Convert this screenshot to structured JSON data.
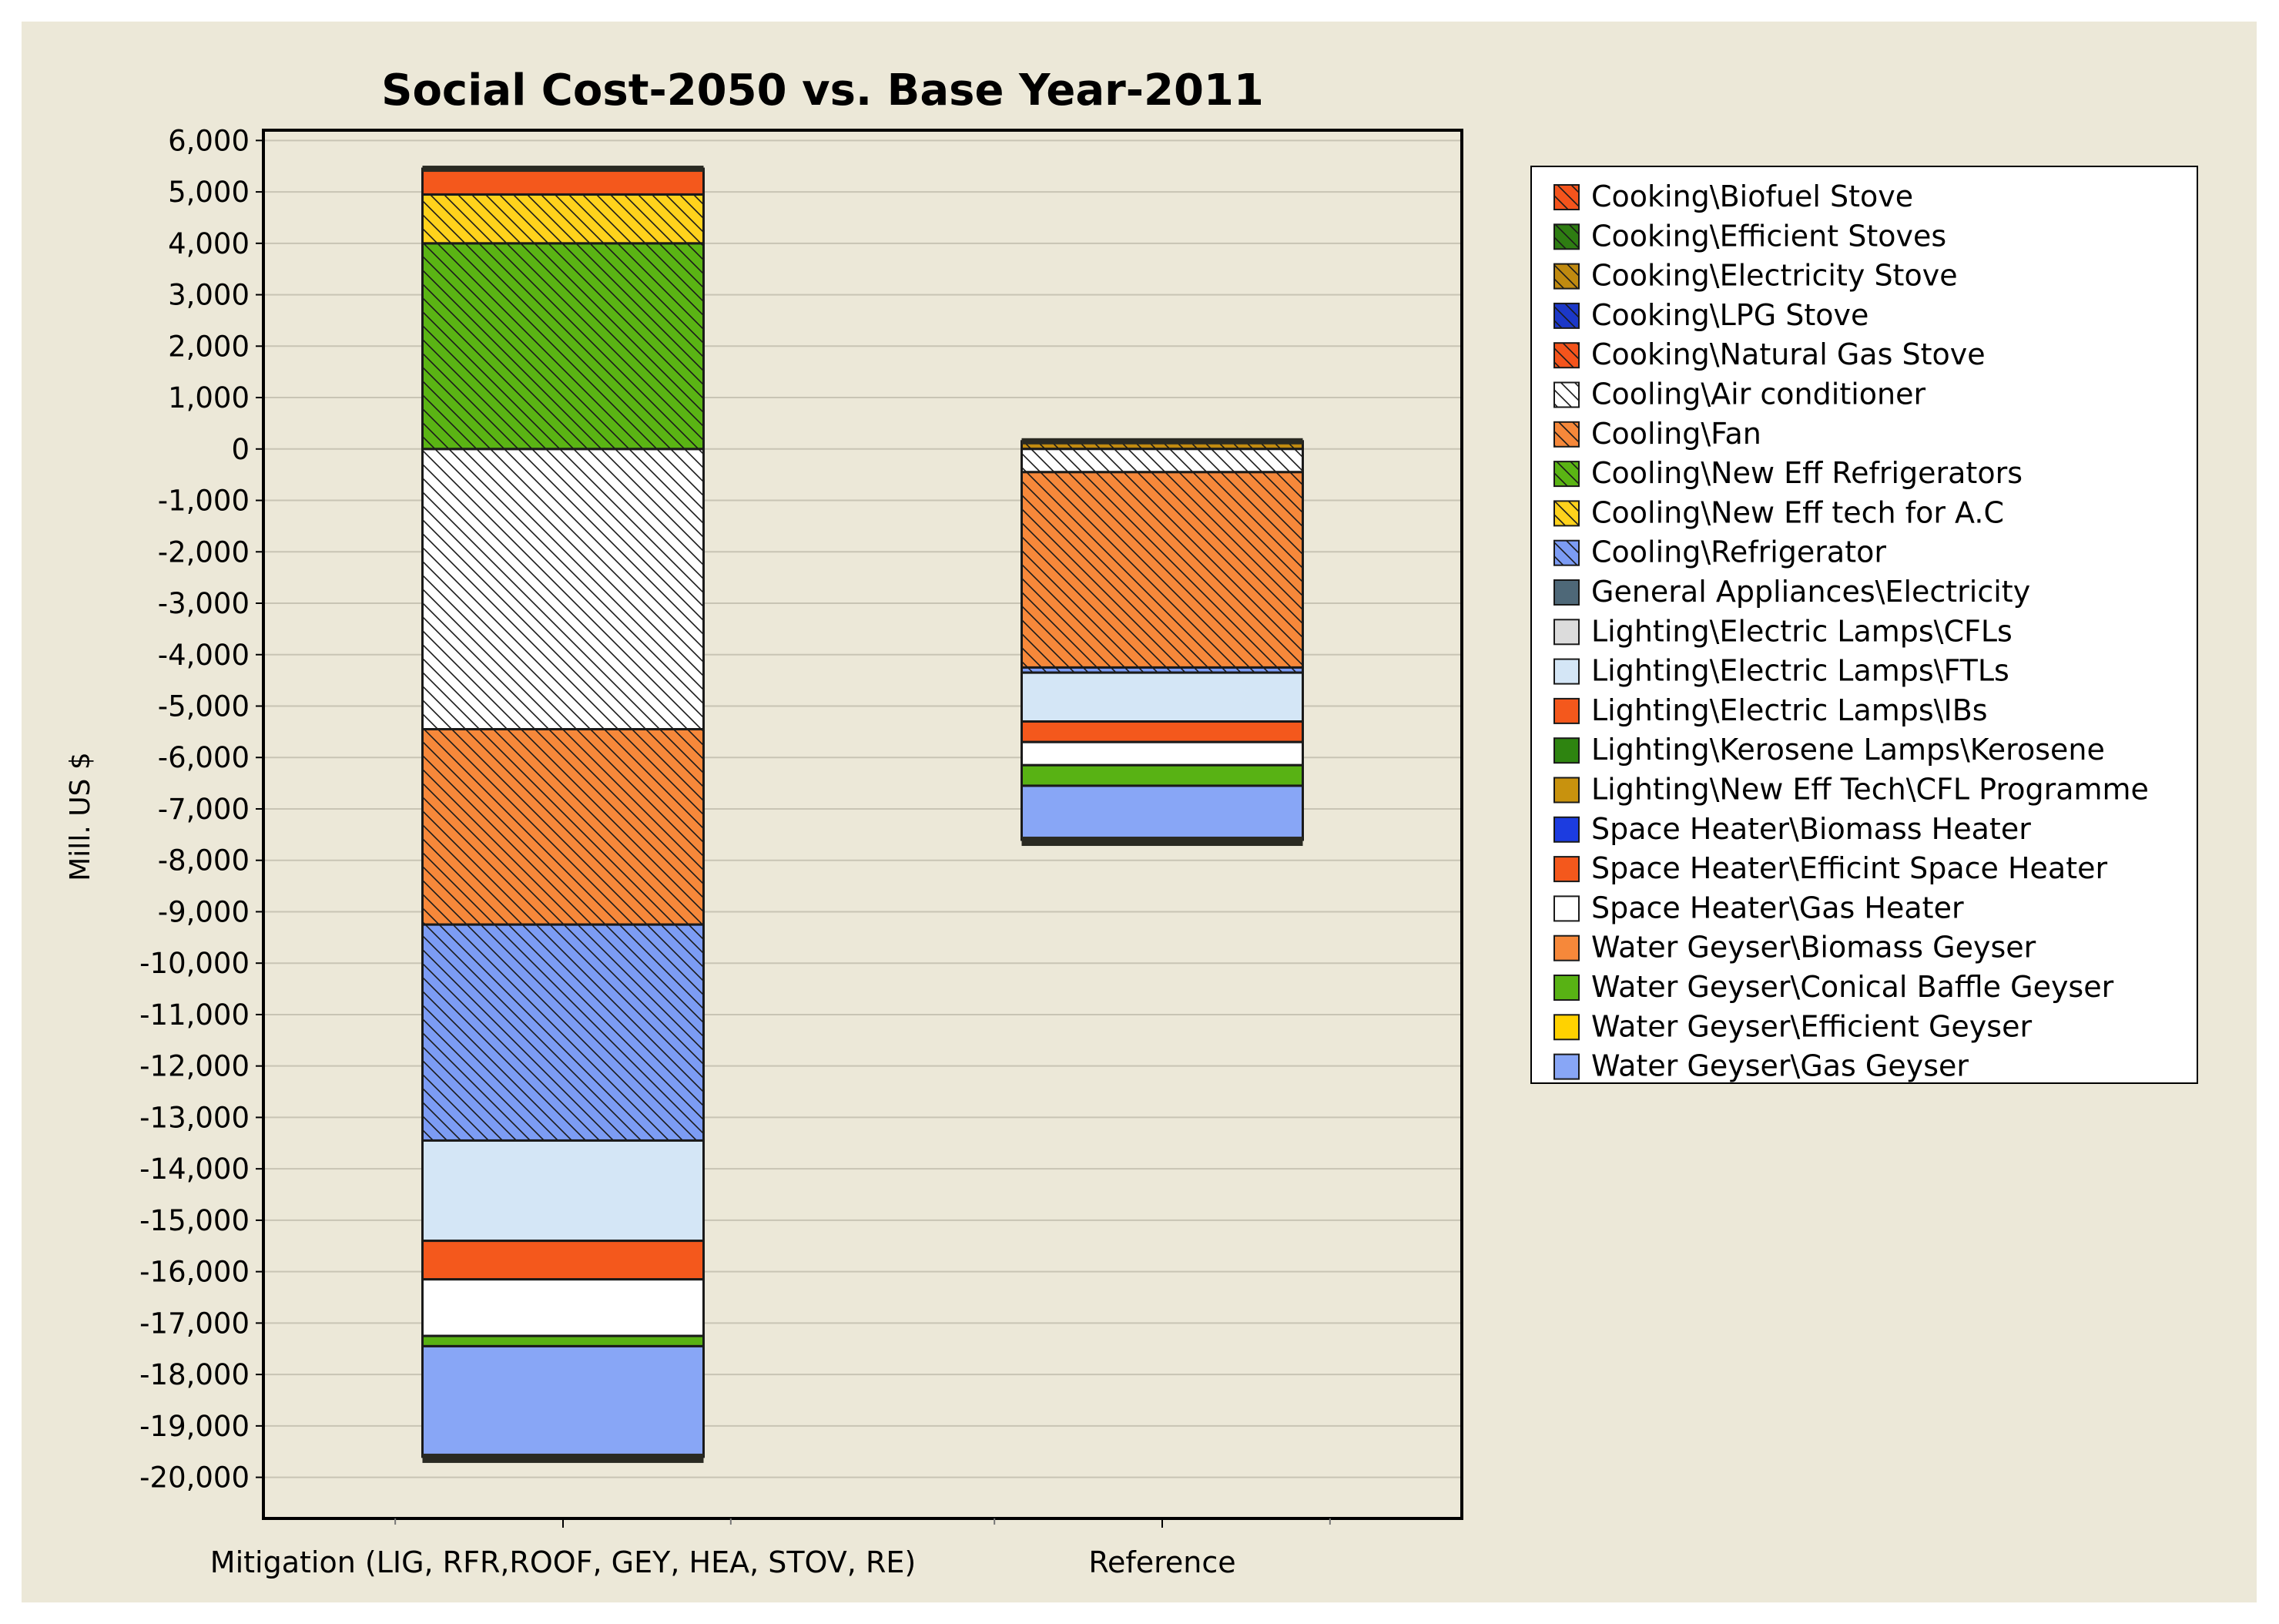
{
  "chart_data": {
    "type": "bar",
    "stacked": true,
    "title": "Social Cost-2050 vs. Base Year-2011",
    "xlabel": "",
    "ylabel": "Mill. US $",
    "ylim": [
      -20800,
      6200
    ],
    "yticks": [
      6000,
      5000,
      4000,
      3000,
      2000,
      1000,
      0,
      -1000,
      -2000,
      -3000,
      -4000,
      -5000,
      -6000,
      -7000,
      -8000,
      -9000,
      -10000,
      -11000,
      -12000,
      -13000,
      -14000,
      -15000,
      -16000,
      -17000,
      -18000,
      -19000,
      -20000
    ],
    "ytick_labels": [
      "6,000",
      "5,000",
      "4,000",
      "3,000",
      "2,000",
      "1,000",
      "0",
      "-1,000",
      "-2,000",
      "-3,000",
      "-4,000",
      "-5,000",
      "-6,000",
      "-7,000",
      "-8,000",
      "-9,000",
      "-10,000",
      "-11,000",
      "-12,000",
      "-13,000",
      "-14,000",
      "-15,000",
      "-16,000",
      "-17,000",
      "-18,000",
      "-19,000",
      "-20,000"
    ],
    "grid": true,
    "legend_position": "right",
    "categories": [
      "Mitigation (LIG, RFR,ROOF, GEY, HEA, STOV, RE)",
      "Reference"
    ],
    "series": [
      {
        "name": "Cooking\\Biofuel Stove",
        "color": "#f4541c",
        "hatch": true,
        "values": [
          0,
          0
        ]
      },
      {
        "name": "Cooking\\Efficient Stoves",
        "color": "#2e7d12",
        "hatch": true,
        "values": [
          0,
          0
        ]
      },
      {
        "name": "Cooking\\Electricity Stove",
        "color": "#c08a10",
        "hatch": true,
        "values": [
          0,
          150
        ]
      },
      {
        "name": "Cooking\\LPG Stove",
        "color": "#1c38c8",
        "hatch": true,
        "values": [
          0,
          0
        ]
      },
      {
        "name": "Cooking\\Natural Gas Stove",
        "color": "#f4541c",
        "hatch": true,
        "values": [
          0,
          0
        ]
      },
      {
        "name": "Cooling\\Air conditioner",
        "color": "#ffffff",
        "hatch": true,
        "values": [
          -5450,
          -450
        ]
      },
      {
        "name": "Cooling\\Fan",
        "color": "#f6883a",
        "hatch": true,
        "values": [
          -3800,
          -3800
        ]
      },
      {
        "name": "Cooling\\New Eff Refrigerators",
        "color": "#5ab414",
        "hatch": true,
        "values": [
          4000,
          0
        ]
      },
      {
        "name": "Cooling\\New Eff tech for A.C",
        "color": "#ffd21c",
        "hatch": true,
        "values": [
          950,
          0
        ]
      },
      {
        "name": "Cooling\\Refrigerator",
        "color": "#7c9cf4",
        "hatch": true,
        "values": [
          -4200,
          -100
        ]
      },
      {
        "name": "General Appliances\\Electricity",
        "color": "#4e6878",
        "hatch": false,
        "values": [
          0,
          0
        ]
      },
      {
        "name": "Lighting\\Electric Lamps\\CFLs",
        "color": "#dcdcdc",
        "hatch": false,
        "values": [
          0,
          0
        ]
      },
      {
        "name": "Lighting\\Electric Lamps\\FTLs",
        "color": "#d4e6f6",
        "hatch": false,
        "values": [
          -1950,
          -950
        ]
      },
      {
        "name": "Lighting\\Electric Lamps\\IBs",
        "color": "#f4581c",
        "hatch": false,
        "values": [
          -750,
          -400
        ]
      },
      {
        "name": "Lighting\\Kerosene Lamps\\Kerosene",
        "color": "#2e8410",
        "hatch": false,
        "values": [
          0,
          0
        ]
      },
      {
        "name": "Lighting\\New Eff Tech\\CFL Programme",
        "color": "#c8920e",
        "hatch": false,
        "values": [
          0,
          0
        ]
      },
      {
        "name": "Space Heater\\Biomass Heater",
        "color": "#1c3ce0",
        "hatch": false,
        "values": [
          0,
          0
        ]
      },
      {
        "name": "Space Heater\\Efficint Space Heater",
        "color": "#f4581c",
        "hatch": false,
        "values": [
          500,
          0
        ]
      },
      {
        "name": "Space Heater\\Gas Heater",
        "color": "#ffffff",
        "hatch": false,
        "values": [
          -1100,
          -450
        ]
      },
      {
        "name": "Water Geyser\\Biomass Geyser",
        "color": "#f6883a",
        "hatch": false,
        "values": [
          0,
          0
        ]
      },
      {
        "name": "Water Geyser\\Conical Baffle Geyser",
        "color": "#58b214",
        "hatch": false,
        "values": [
          -200,
          -400
        ]
      },
      {
        "name": "Water Geyser\\Efficient Geyser",
        "color": "#ffd200",
        "hatch": false,
        "values": [
          0,
          0
        ]
      },
      {
        "name": "Water Geyser\\Gas Geyser",
        "color": "#88a6f6",
        "hatch": false,
        "values": [
          -2150,
          -1050
        ]
      }
    ]
  }
}
